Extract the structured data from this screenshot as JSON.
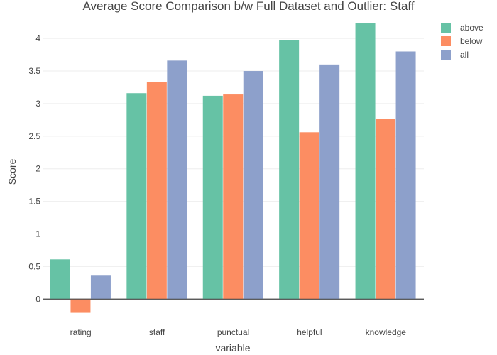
{
  "chart_data": {
    "type": "bar",
    "title": "Average Score Comparison b/w Full Dataset and Outlier: Staff",
    "xlabel": "variable",
    "ylabel": "Score",
    "categories": [
      "rating",
      "staff",
      "punctual",
      "helpful",
      "knowledge"
    ],
    "series": [
      {
        "name": "above",
        "color": "#66c2a5",
        "values": [
          0.61,
          3.16,
          3.12,
          3.97,
          4.23
        ]
      },
      {
        "name": "below",
        "color": "#fc8d62",
        "values": [
          -0.21,
          3.33,
          3.14,
          2.56,
          2.76
        ]
      },
      {
        "name": "all",
        "color": "#8da0cb",
        "values": [
          0.36,
          3.66,
          3.5,
          3.6,
          3.8
        ]
      }
    ],
    "ylim": [
      -0.28,
      4.35
    ],
    "yticks": [
      0,
      0.5,
      1,
      1.5,
      2,
      2.5,
      3,
      3.5,
      4
    ],
    "ytick_labels": [
      "0",
      "0.5",
      "1",
      "1.5",
      "2",
      "2.5",
      "3",
      "3.5",
      "4"
    ],
    "grid": true,
    "legend_position": "top-right"
  }
}
